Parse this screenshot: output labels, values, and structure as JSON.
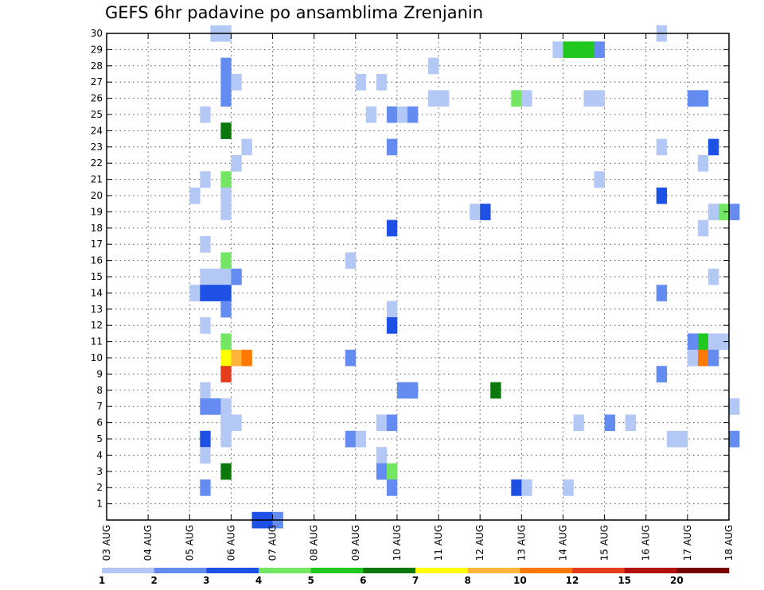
{
  "chart_data": {
    "type": "heatmap",
    "title": "GEFS 6hr padavine po ansamblima Zrenjanin",
    "y_ticks": [
      "1",
      "2",
      "3",
      "4",
      "5",
      "6",
      "7",
      "8",
      "9",
      "10",
      "11",
      "12",
      "13",
      "14",
      "15",
      "16",
      "17",
      "18",
      "19",
      "20",
      "21",
      "22",
      "23",
      "24",
      "25",
      "26",
      "27",
      "28",
      "29",
      "30"
    ],
    "x_ticks": [
      "03 AUG",
      "04 AUG",
      "05 AUG",
      "06 AUG",
      "07 AUG",
      "08 AUG",
      "09 AUG",
      "10 AUG",
      "11 AUG",
      "12 AUG",
      "13 AUG",
      "14 AUG",
      "15 AUG",
      "16 AUG",
      "17 AUG",
      "18 AUG"
    ],
    "x_range_days": [
      0,
      15
    ],
    "y_range": [
      0,
      30
    ],
    "grid": true,
    "steps_per_day": 4,
    "colorbar": {
      "colors": [
        "#b4c8f5",
        "#648cf0",
        "#1e50e6",
        "#73e664",
        "#1ec81e",
        "#0a780a",
        "#ffff00",
        "#ffb43c",
        "#ff7800",
        "#e63c1e",
        "#b40f0f",
        "#780000"
      ],
      "labels": [
        "1",
        "2",
        "3",
        "4",
        "5",
        "6",
        "7",
        "8",
        "10",
        "12",
        "15",
        "20"
      ]
    },
    "cells": [
      [
        10,
        30,
        0
      ],
      [
        11,
        30,
        0
      ],
      [
        53,
        30,
        0
      ],
      [
        43,
        29,
        0
      ],
      [
        44,
        29,
        4
      ],
      [
        45,
        29,
        4
      ],
      [
        46,
        29,
        4
      ],
      [
        47,
        29,
        1
      ],
      [
        11,
        28,
        1
      ],
      [
        31,
        28,
        0
      ],
      [
        11,
        27,
        1
      ],
      [
        12,
        27,
        0
      ],
      [
        24,
        27,
        0
      ],
      [
        26,
        27,
        0
      ],
      [
        11,
        26,
        1
      ],
      [
        31,
        26,
        0
      ],
      [
        32,
        26,
        0
      ],
      [
        39,
        26,
        3
      ],
      [
        40,
        26,
        0
      ],
      [
        46,
        26,
        0
      ],
      [
        47,
        26,
        0
      ],
      [
        56,
        26,
        1
      ],
      [
        57,
        26,
        1
      ],
      [
        9,
        25,
        0
      ],
      [
        25,
        25,
        0
      ],
      [
        27,
        25,
        1
      ],
      [
        28,
        25,
        0
      ],
      [
        29,
        25,
        1
      ],
      [
        11,
        24,
        5
      ],
      [
        13,
        23,
        0
      ],
      [
        27,
        23,
        1
      ],
      [
        53,
        23,
        0
      ],
      [
        58,
        23,
        2
      ],
      [
        12,
        22,
        0
      ],
      [
        57,
        22,
        0
      ],
      [
        9,
        21,
        0
      ],
      [
        11,
        21,
        3
      ],
      [
        47,
        21,
        0
      ],
      [
        8,
        20,
        0
      ],
      [
        11,
        20,
        0
      ],
      [
        53,
        20,
        2
      ],
      [
        11,
        19,
        0
      ],
      [
        35,
        19,
        0
      ],
      [
        36,
        19,
        2
      ],
      [
        58,
        19,
        0
      ],
      [
        59,
        19,
        3
      ],
      [
        60,
        19,
        1
      ],
      [
        27,
        18,
        2
      ],
      [
        57,
        18,
        0
      ],
      [
        9,
        17,
        0
      ],
      [
        11,
        16,
        3
      ],
      [
        23,
        16,
        0
      ],
      [
        9,
        15,
        0
      ],
      [
        10,
        15,
        0
      ],
      [
        11,
        15,
        0
      ],
      [
        12,
        15,
        1
      ],
      [
        58,
        15,
        0
      ],
      [
        8,
        14,
        0
      ],
      [
        9,
        14,
        2
      ],
      [
        10,
        14,
        2
      ],
      [
        11,
        14,
        2
      ],
      [
        53,
        14,
        1
      ],
      [
        11,
        13,
        1
      ],
      [
        27,
        13,
        0
      ],
      [
        9,
        12,
        0
      ],
      [
        27,
        12,
        2
      ],
      [
        11,
        11,
        3
      ],
      [
        56,
        11,
        1
      ],
      [
        57,
        11,
        4
      ],
      [
        58,
        11,
        0
      ],
      [
        59,
        11,
        0
      ],
      [
        11,
        10,
        6
      ],
      [
        12,
        10,
        7
      ],
      [
        13,
        10,
        8
      ],
      [
        23,
        10,
        1
      ],
      [
        56,
        10,
        0
      ],
      [
        57,
        10,
        8
      ],
      [
        58,
        10,
        1
      ],
      [
        11,
        9,
        9
      ],
      [
        53,
        9,
        1
      ],
      [
        9,
        8,
        0
      ],
      [
        28,
        8,
        1
      ],
      [
        29,
        8,
        1
      ],
      [
        37,
        8,
        5
      ],
      [
        9,
        7,
        1
      ],
      [
        10,
        7,
        1
      ],
      [
        11,
        7,
        0
      ],
      [
        60,
        7,
        0
      ],
      [
        11,
        6,
        0
      ],
      [
        12,
        6,
        0
      ],
      [
        26,
        6,
        0
      ],
      [
        27,
        6,
        1
      ],
      [
        45,
        6,
        0
      ],
      [
        48,
        6,
        1
      ],
      [
        50,
        6,
        0
      ],
      [
        9,
        5,
        2
      ],
      [
        11,
        5,
        0
      ],
      [
        23,
        5,
        1
      ],
      [
        24,
        5,
        0
      ],
      [
        54,
        5,
        0
      ],
      [
        55,
        5,
        0
      ],
      [
        60,
        5,
        1
      ],
      [
        9,
        4,
        0
      ],
      [
        26,
        4,
        0
      ],
      [
        11,
        3,
        5
      ],
      [
        26,
        3,
        1
      ],
      [
        27,
        3,
        3
      ],
      [
        9,
        2,
        1
      ],
      [
        27,
        2,
        1
      ],
      [
        39,
        2,
        2
      ],
      [
        40,
        2,
        0
      ],
      [
        44,
        2,
        0
      ],
      [
        14,
        0,
        2
      ],
      [
        15,
        0,
        2
      ],
      [
        16,
        0,
        1
      ]
    ]
  }
}
